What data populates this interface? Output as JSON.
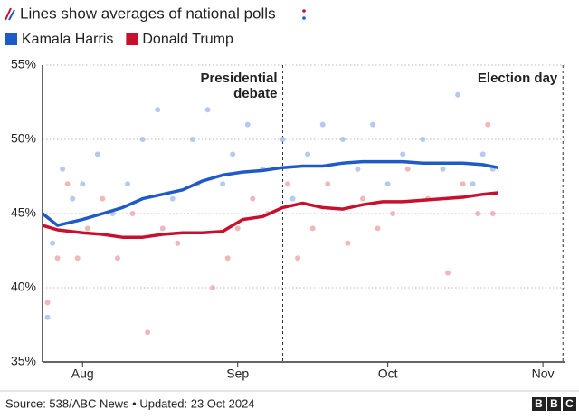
{
  "chart_data": {
    "type": "line",
    "title": "Lines show averages of national polls",
    "x": [
      -8,
      -5,
      0,
      4,
      8,
      12,
      16,
      20,
      24,
      28,
      32,
      36,
      40,
      44,
      48,
      52,
      56,
      60,
      64,
      68,
      72,
      76,
      80,
      83
    ],
    "xlim": [
      -8,
      96.5
    ],
    "xticks": [
      {
        "value": 0,
        "label": "Aug"
      },
      {
        "value": 31,
        "label": "Sep"
      },
      {
        "value": 61,
        "label": "Oct"
      },
      {
        "value": 92,
        "label": "Nov"
      }
    ],
    "ylim": [
      35,
      55
    ],
    "yticks": [
      {
        "value": 35,
        "label": "35%"
      },
      {
        "value": 40,
        "label": "40%"
      },
      {
        "value": 45,
        "label": "45%"
      },
      {
        "value": 50,
        "label": "50%"
      },
      {
        "value": 55,
        "label": "55%"
      }
    ],
    "grid": true,
    "series": [
      {
        "name": "Kamala Harris",
        "color": "#1f5bc6",
        "dot_color": "#9db8ea",
        "values": [
          45.0,
          44.2,
          44.6,
          45.0,
          45.4,
          46.0,
          46.3,
          46.6,
          47.2,
          47.6,
          47.8,
          47.9,
          48.1,
          48.2,
          48.2,
          48.4,
          48.5,
          48.5,
          48.5,
          48.4,
          48.4,
          48.4,
          48.3,
          48.1
        ],
        "polls": {
          "x": [
            -7,
            -6,
            -4,
            -2,
            0,
            3,
            6,
            9,
            12,
            15,
            18,
            22,
            25,
            28,
            30,
            33,
            36,
            40,
            42,
            45,
            48,
            52,
            55,
            58,
            61,
            64,
            68,
            72,
            75,
            78,
            80,
            82
          ],
          "values": [
            38,
            43,
            48,
            46,
            47,
            49,
            45,
            47,
            50,
            52,
            46,
            50,
            52,
            47,
            49,
            51,
            48,
            50,
            46,
            49,
            51,
            50,
            48,
            51,
            47,
            49,
            50,
            48,
            53,
            47,
            49,
            48
          ]
        }
      },
      {
        "name": "Donald Trump",
        "color": "#c8102e",
        "dot_color": "#eba1a1",
        "values": [
          44.2,
          43.9,
          43.7,
          43.6,
          43.4,
          43.4,
          43.6,
          43.7,
          43.7,
          43.8,
          44.6,
          44.8,
          45.4,
          45.7,
          45.4,
          45.3,
          45.6,
          45.8,
          45.8,
          45.9,
          46.0,
          46.1,
          46.3,
          46.4
        ],
        "polls": {
          "x": [
            -7,
            -5,
            -3,
            -1,
            1,
            4,
            7,
            10,
            13,
            16,
            19,
            23,
            26,
            29,
            31,
            34,
            37,
            41,
            43,
            46,
            49,
            53,
            56,
            59,
            62,
            65,
            69,
            73,
            76,
            79,
            81,
            82
          ],
          "values": [
            39,
            42,
            47,
            42,
            44,
            46,
            42,
            45,
            37,
            44,
            43,
            47,
            40,
            42,
            44,
            46,
            45,
            47,
            42,
            44,
            47,
            43,
            46,
            44,
            45,
            48,
            46,
            41,
            47,
            45,
            51,
            45
          ]
        }
      }
    ],
    "annotations": [
      {
        "text": "Presidential debate",
        "x": 40
      },
      {
        "text": "Election day",
        "x": 96
      }
    ],
    "source": "Source: 538/ABC News • Updated: 23 Oct 2024",
    "logo": [
      "B",
      "B",
      "C"
    ]
  }
}
